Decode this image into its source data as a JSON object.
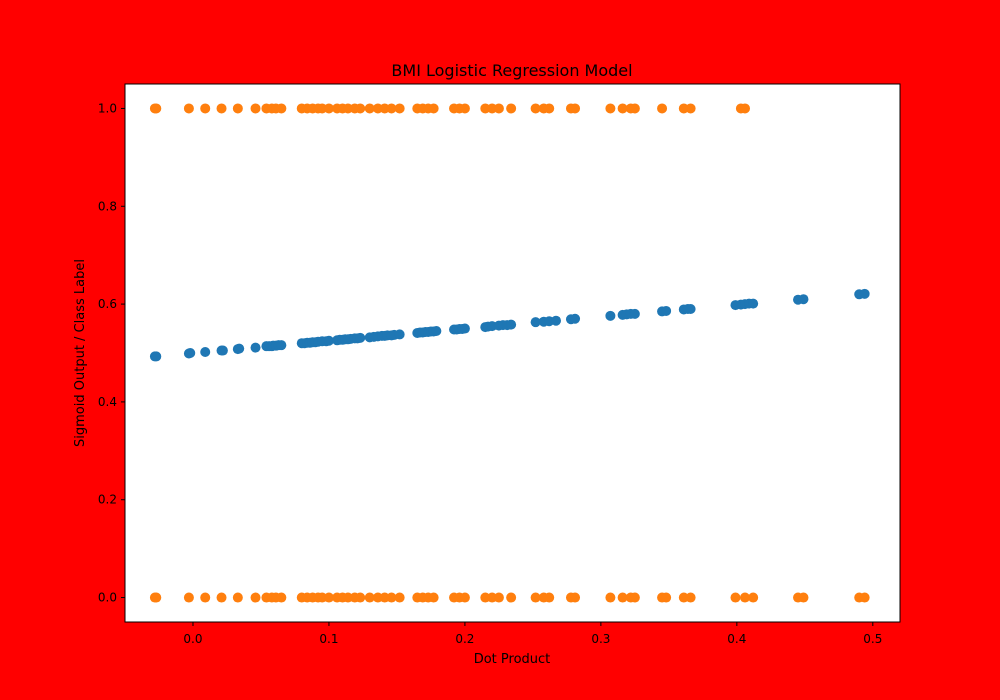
{
  "chart_data": {
    "type": "scatter",
    "title": "BMI Logistic Regression Model",
    "xlabel": "Dot Product",
    "ylabel": "Sigmoid Output / Class Label",
    "xlim": [
      -0.05,
      0.52
    ],
    "ylim": [
      -0.05,
      1.05
    ],
    "x_ticks": [
      0.0,
      0.1,
      0.2,
      0.3,
      0.4,
      0.5
    ],
    "x_tick_labels": [
      "0.0",
      "0.1",
      "0.2",
      "0.3",
      "0.4",
      "0.5"
    ],
    "y_ticks": [
      0.0,
      0.2,
      0.4,
      0.6,
      0.8,
      1.0
    ],
    "y_tick_labels": [
      "0.0",
      "0.2",
      "0.4",
      "0.6",
      "0.8",
      "1.0"
    ],
    "grid": false,
    "legend": "none",
    "colors": {
      "figure_background": "#ff0000",
      "plot_background": "#ffffff",
      "sigmoid_series": "#1f77b4",
      "label_series": "#ff7f0e"
    },
    "series": [
      {
        "color": "#1f77b4",
        "points": [
          [
            -0.028,
            0.493
          ],
          [
            -0.027,
            0.493
          ],
          [
            -0.003,
            0.499
          ],
          [
            -0.002,
            0.5
          ],
          [
            0.009,
            0.502
          ],
          [
            0.021,
            0.505
          ],
          [
            0.022,
            0.505
          ],
          [
            0.033,
            0.508
          ],
          [
            0.034,
            0.509
          ],
          [
            0.046,
            0.511
          ],
          [
            0.054,
            0.514
          ],
          [
            0.056,
            0.514
          ],
          [
            0.058,
            0.514
          ],
          [
            0.059,
            0.515
          ],
          [
            0.061,
            0.515
          ],
          [
            0.063,
            0.516
          ],
          [
            0.065,
            0.516
          ],
          [
            0.08,
            0.52
          ],
          [
            0.082,
            0.52
          ],
          [
            0.084,
            0.521
          ],
          [
            0.086,
            0.521
          ],
          [
            0.088,
            0.522
          ],
          [
            0.09,
            0.522
          ],
          [
            0.092,
            0.523
          ],
          [
            0.095,
            0.524
          ],
          [
            0.098,
            0.524
          ],
          [
            0.1,
            0.525
          ],
          [
            0.106,
            0.526
          ],
          [
            0.108,
            0.527
          ],
          [
            0.11,
            0.527
          ],
          [
            0.112,
            0.528
          ],
          [
            0.114,
            0.528
          ],
          [
            0.116,
            0.529
          ],
          [
            0.119,
            0.53
          ],
          [
            0.121,
            0.53
          ],
          [
            0.123,
            0.531
          ],
          [
            0.13,
            0.532
          ],
          [
            0.133,
            0.533
          ],
          [
            0.136,
            0.534
          ],
          [
            0.139,
            0.535
          ],
          [
            0.141,
            0.535
          ],
          [
            0.143,
            0.536
          ],
          [
            0.146,
            0.536
          ],
          [
            0.148,
            0.537
          ],
          [
            0.152,
            0.538
          ],
          [
            0.165,
            0.541
          ],
          [
            0.167,
            0.542
          ],
          [
            0.169,
            0.542
          ],
          [
            0.171,
            0.543
          ],
          [
            0.173,
            0.543
          ],
          [
            0.175,
            0.544
          ],
          [
            0.177,
            0.544
          ],
          [
            0.179,
            0.545
          ],
          [
            0.192,
            0.548
          ],
          [
            0.194,
            0.548
          ],
          [
            0.196,
            0.549
          ],
          [
            0.198,
            0.549
          ],
          [
            0.2,
            0.55
          ],
          [
            0.215,
            0.553
          ],
          [
            0.217,
            0.554
          ],
          [
            0.22,
            0.555
          ],
          [
            0.225,
            0.556
          ],
          [
            0.228,
            0.557
          ],
          [
            0.231,
            0.557
          ],
          [
            0.234,
            0.558
          ],
          [
            0.252,
            0.563
          ],
          [
            0.258,
            0.564
          ],
          [
            0.262,
            0.565
          ],
          [
            0.267,
            0.566
          ],
          [
            0.278,
            0.569
          ],
          [
            0.281,
            0.57
          ],
          [
            0.307,
            0.576
          ],
          [
            0.316,
            0.578
          ],
          [
            0.319,
            0.579
          ],
          [
            0.322,
            0.58
          ],
          [
            0.325,
            0.58
          ],
          [
            0.345,
            0.585
          ],
          [
            0.348,
            0.586
          ],
          [
            0.361,
            0.589
          ],
          [
            0.364,
            0.59
          ],
          [
            0.366,
            0.59
          ],
          [
            0.399,
            0.598
          ],
          [
            0.403,
            0.599
          ],
          [
            0.406,
            0.6
          ],
          [
            0.409,
            0.601
          ],
          [
            0.412,
            0.601
          ],
          [
            0.445,
            0.609
          ],
          [
            0.449,
            0.61
          ],
          [
            0.49,
            0.62
          ],
          [
            0.494,
            0.621
          ]
        ]
      },
      {
        "color": "#ff7f0e",
        "points": [
          [
            -0.028,
            1.0
          ],
          [
            -0.027,
            1.0
          ],
          [
            -0.003,
            1.0
          ],
          [
            0.009,
            1.0
          ],
          [
            0.021,
            1.0
          ],
          [
            0.033,
            1.0
          ],
          [
            0.046,
            1.0
          ],
          [
            0.054,
            1.0
          ],
          [
            0.058,
            1.0
          ],
          [
            0.061,
            1.0
          ],
          [
            0.065,
            1.0
          ],
          [
            0.08,
            1.0
          ],
          [
            0.084,
            1.0
          ],
          [
            0.088,
            1.0
          ],
          [
            0.092,
            1.0
          ],
          [
            0.095,
            1.0
          ],
          [
            0.1,
            1.0
          ],
          [
            0.106,
            1.0
          ],
          [
            0.11,
            1.0
          ],
          [
            0.114,
            1.0
          ],
          [
            0.119,
            1.0
          ],
          [
            0.123,
            1.0
          ],
          [
            0.13,
            1.0
          ],
          [
            0.136,
            1.0
          ],
          [
            0.141,
            1.0
          ],
          [
            0.146,
            1.0
          ],
          [
            0.152,
            1.0
          ],
          [
            0.165,
            1.0
          ],
          [
            0.169,
            1.0
          ],
          [
            0.173,
            1.0
          ],
          [
            0.177,
            1.0
          ],
          [
            0.192,
            1.0
          ],
          [
            0.196,
            1.0
          ],
          [
            0.2,
            1.0
          ],
          [
            0.215,
            1.0
          ],
          [
            0.22,
            1.0
          ],
          [
            0.225,
            1.0
          ],
          [
            0.234,
            1.0
          ],
          [
            0.252,
            1.0
          ],
          [
            0.258,
            1.0
          ],
          [
            0.262,
            1.0
          ],
          [
            0.278,
            1.0
          ],
          [
            0.281,
            1.0
          ],
          [
            0.307,
            1.0
          ],
          [
            0.316,
            1.0
          ],
          [
            0.322,
            1.0
          ],
          [
            0.325,
            1.0
          ],
          [
            0.345,
            1.0
          ],
          [
            0.361,
            1.0
          ],
          [
            0.366,
            1.0
          ],
          [
            0.403,
            1.0
          ],
          [
            0.406,
            1.0
          ],
          [
            -0.028,
            0.0
          ],
          [
            -0.027,
            0.0
          ],
          [
            -0.003,
            0.0
          ],
          [
            0.009,
            0.0
          ],
          [
            0.021,
            0.0
          ],
          [
            0.033,
            0.0
          ],
          [
            0.046,
            0.0
          ],
          [
            0.054,
            0.0
          ],
          [
            0.058,
            0.0
          ],
          [
            0.061,
            0.0
          ],
          [
            0.065,
            0.0
          ],
          [
            0.08,
            0.0
          ],
          [
            0.084,
            0.0
          ],
          [
            0.088,
            0.0
          ],
          [
            0.092,
            0.0
          ],
          [
            0.095,
            0.0
          ],
          [
            0.1,
            0.0
          ],
          [
            0.106,
            0.0
          ],
          [
            0.11,
            0.0
          ],
          [
            0.114,
            0.0
          ],
          [
            0.119,
            0.0
          ],
          [
            0.123,
            0.0
          ],
          [
            0.13,
            0.0
          ],
          [
            0.136,
            0.0
          ],
          [
            0.141,
            0.0
          ],
          [
            0.146,
            0.0
          ],
          [
            0.152,
            0.0
          ],
          [
            0.165,
            0.0
          ],
          [
            0.169,
            0.0
          ],
          [
            0.173,
            0.0
          ],
          [
            0.177,
            0.0
          ],
          [
            0.192,
            0.0
          ],
          [
            0.196,
            0.0
          ],
          [
            0.2,
            0.0
          ],
          [
            0.215,
            0.0
          ],
          [
            0.22,
            0.0
          ],
          [
            0.225,
            0.0
          ],
          [
            0.234,
            0.0
          ],
          [
            0.252,
            0.0
          ],
          [
            0.258,
            0.0
          ],
          [
            0.262,
            0.0
          ],
          [
            0.278,
            0.0
          ],
          [
            0.281,
            0.0
          ],
          [
            0.307,
            0.0
          ],
          [
            0.316,
            0.0
          ],
          [
            0.322,
            0.0
          ],
          [
            0.325,
            0.0
          ],
          [
            0.345,
            0.0
          ],
          [
            0.348,
            0.0
          ],
          [
            0.361,
            0.0
          ],
          [
            0.366,
            0.0
          ],
          [
            0.399,
            0.0
          ],
          [
            0.406,
            0.0
          ],
          [
            0.412,
            0.0
          ],
          [
            0.445,
            0.0
          ],
          [
            0.449,
            0.0
          ],
          [
            0.49,
            0.0
          ],
          [
            0.494,
            0.0
          ]
        ]
      }
    ]
  }
}
